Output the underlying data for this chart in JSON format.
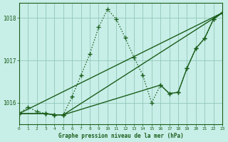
{
  "title": "Graphe pression niveau de la mer (hPa)",
  "bg_color": "#c8eee8",
  "line_color": "#1a5e1a",
  "xlim": [
    0,
    23
  ],
  "ylim": [
    1015.5,
    1018.35
  ],
  "yticks": [
    1016,
    1017,
    1018
  ],
  "xticks": [
    0,
    1,
    2,
    3,
    4,
    5,
    6,
    7,
    8,
    9,
    10,
    11,
    12,
    13,
    14,
    15,
    16,
    17,
    18,
    19,
    20,
    21,
    22,
    23
  ],
  "series0_x": [
    0,
    1,
    2,
    3,
    4,
    5,
    6,
    7,
    8,
    9,
    10,
    11,
    12,
    13,
    14,
    15,
    16,
    17,
    18,
    19,
    20,
    21,
    22,
    23
  ],
  "series0_y": [
    1015.75,
    1015.9,
    1015.8,
    1015.75,
    1015.72,
    1015.72,
    1016.15,
    1016.65,
    1017.15,
    1017.78,
    1018.2,
    1017.97,
    1017.53,
    1017.07,
    1016.65,
    1016.0,
    1016.42,
    1016.22,
    1016.25,
    1016.82,
    1017.28,
    1017.52,
    1017.97,
    1018.12
  ],
  "series1_x": [
    0,
    3,
    4,
    5,
    16,
    17,
    18,
    19,
    20,
    21,
    22,
    23
  ],
  "series1_y": [
    1015.75,
    1015.75,
    1015.72,
    1015.72,
    1016.42,
    1016.22,
    1016.25,
    1016.82,
    1017.28,
    1017.52,
    1017.97,
    1018.12
  ],
  "series2_x": [
    0,
    3,
    4,
    5,
    23
  ],
  "series2_y": [
    1015.75,
    1015.75,
    1015.72,
    1015.72,
    1018.12
  ],
  "series3_x": [
    0,
    23
  ],
  "series3_y": [
    1015.75,
    1018.12
  ]
}
